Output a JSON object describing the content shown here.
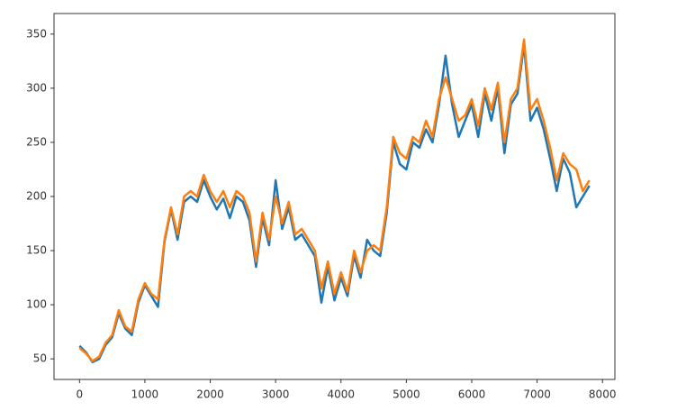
{
  "chart_data": {
    "type": "line",
    "x": [
      0,
      100,
      200,
      300,
      400,
      500,
      600,
      700,
      800,
      900,
      1000,
      1100,
      1200,
      1300,
      1400,
      1500,
      1600,
      1700,
      1800,
      1900,
      2000,
      2100,
      2200,
      2300,
      2400,
      2500,
      2600,
      2700,
      2800,
      2900,
      3000,
      3100,
      3200,
      3300,
      3400,
      3500,
      3600,
      3700,
      3800,
      3900,
      4000,
      4100,
      4200,
      4300,
      4400,
      4500,
      4600,
      4700,
      4800,
      4900,
      5000,
      5100,
      5200,
      5300,
      5400,
      5500,
      5600,
      5700,
      5800,
      5900,
      6000,
      6100,
      6200,
      6300,
      6400,
      6500,
      6600,
      6700,
      6800,
      6900,
      7000,
      7100,
      7200,
      7300,
      7400,
      7500,
      7600,
      7700,
      7800
    ],
    "series": [
      {
        "color": "#1f77b4",
        "values": [
          62,
          56,
          47,
          50,
          63,
          70,
          92,
          78,
          72,
          102,
          118,
          108,
          98,
          158,
          188,
          160,
          195,
          200,
          195,
          215,
          200,
          188,
          198,
          180,
          200,
          195,
          178,
          135,
          180,
          155,
          215,
          170,
          190,
          160,
          165,
          155,
          145,
          102,
          135,
          104,
          125,
          108,
          145,
          125,
          160,
          150,
          145,
          185,
          250,
          230,
          225,
          250,
          245,
          262,
          250,
          285,
          330,
          285,
          255,
          270,
          285,
          255,
          295,
          270,
          300,
          240,
          285,
          295,
          340,
          270,
          282,
          262,
          235,
          205,
          235,
          222,
          190,
          200,
          210
        ]
      },
      {
        "color": "#ff7f0e",
        "values": [
          60,
          55,
          48,
          52,
          65,
          72,
          95,
          80,
          75,
          105,
          120,
          110,
          105,
          160,
          190,
          165,
          200,
          205,
          200,
          220,
          205,
          195,
          205,
          190,
          205,
          200,
          185,
          140,
          185,
          160,
          200,
          175,
          195,
          165,
          170,
          160,
          150,
          115,
          140,
          110,
          130,
          112,
          150,
          130,
          150,
          155,
          150,
          190,
          255,
          240,
          235,
          255,
          250,
          270,
          255,
          290,
          310,
          290,
          270,
          275,
          290,
          265,
          300,
          280,
          305,
          250,
          290,
          300,
          345,
          280,
          290,
          270,
          245,
          215,
          240,
          230,
          225,
          205,
          215
        ]
      }
    ],
    "xlim": [
      -390,
      8190
    ],
    "ylim": [
      31,
      369
    ],
    "xticks": [
      0,
      1000,
      2000,
      3000,
      4000,
      5000,
      6000,
      7000,
      8000
    ],
    "yticks": [
      50,
      100,
      150,
      200,
      250,
      300,
      350
    ]
  }
}
